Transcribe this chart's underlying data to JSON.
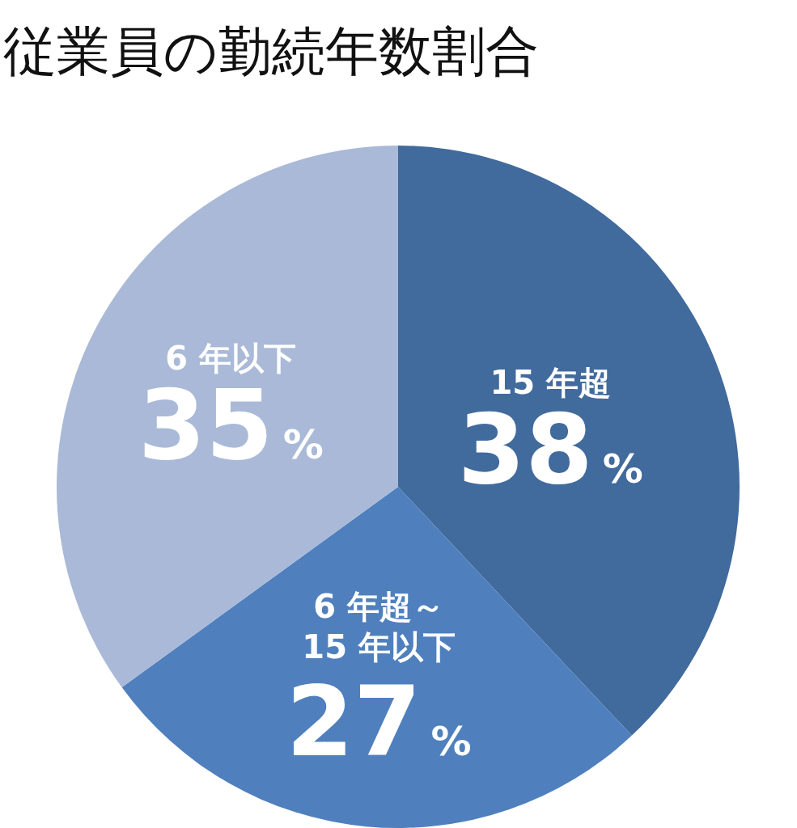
{
  "chart_data": {
    "type": "pie",
    "title": "従業員の勤続年数割合",
    "categories": [
      "15 年超",
      "6 年超～ 15 年以下",
      "6 年以下"
    ],
    "values": [
      38,
      27,
      35
    ],
    "colors": [
      "#416a9d",
      "#4f80bd",
      "#a9b9d7"
    ],
    "value_labels": [
      "38%",
      "27%",
      "35%"
    ]
  }
}
